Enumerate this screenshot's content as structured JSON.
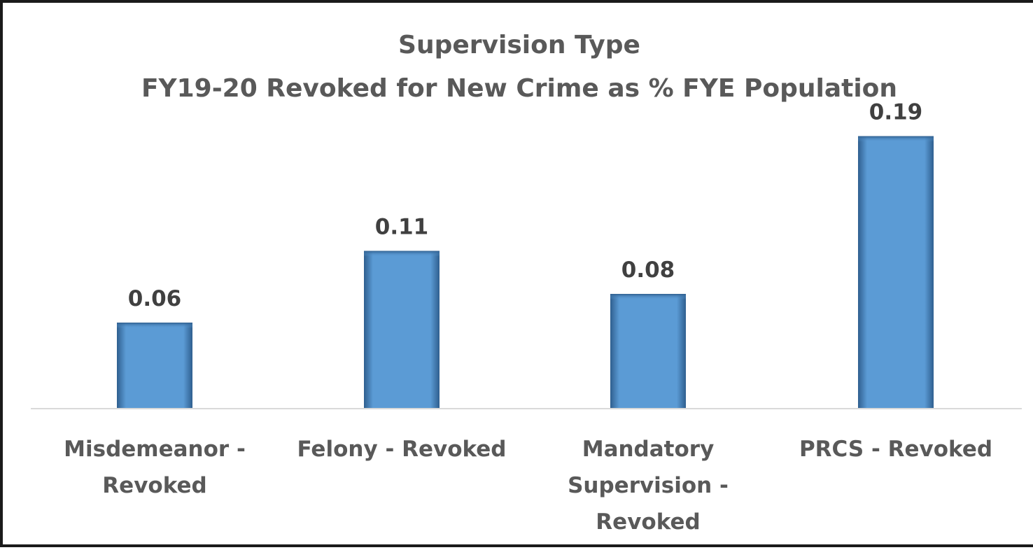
{
  "chart_data": {
    "type": "bar",
    "title": [
      "Supervision Type",
      "FY19-20 Revoked for New Crime  as % FYE Population"
    ],
    "categories": [
      [
        "Misdemeanor -",
        "Revoked"
      ],
      [
        "Felony - Revoked"
      ],
      [
        "Mandatory",
        "Supervision -",
        "Revoked"
      ],
      [
        "PRCS - Revoked"
      ]
    ],
    "values": [
      0.06,
      0.11,
      0.08,
      0.19
    ],
    "data_labels": [
      "0.06",
      "0.11",
      "0.08",
      "0.19"
    ],
    "ylim": [
      0,
      0.2
    ],
    "grid": false,
    "legend": "none",
    "bar_color": "#5b9bd5",
    "bar_shade_color": "#2f5f8f"
  }
}
